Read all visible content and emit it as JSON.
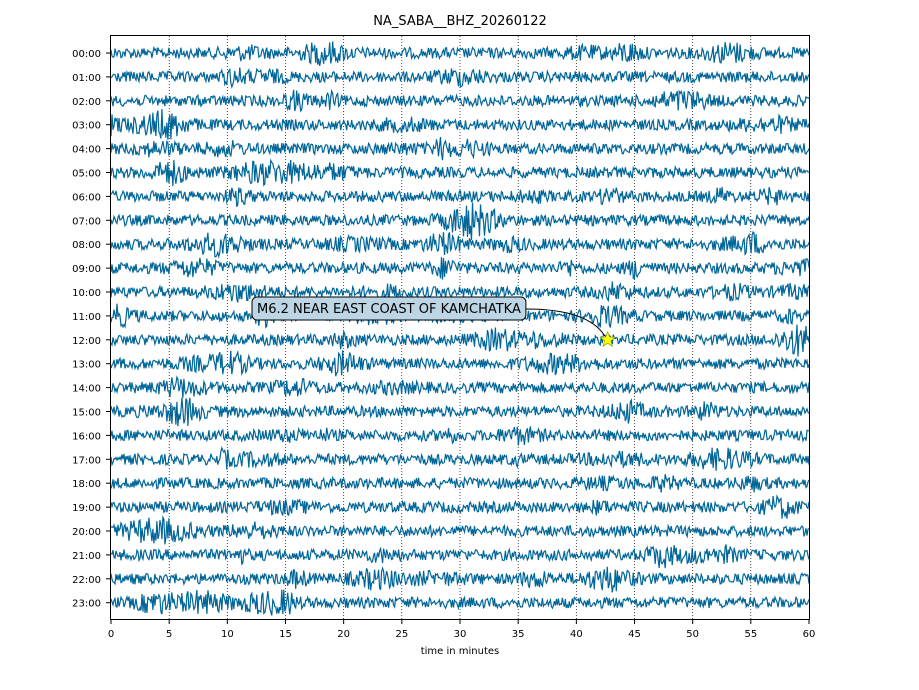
{
  "chart_data": {
    "type": "line",
    "subtype": "helicorder",
    "title": "NA_SABA__BHZ_20260122",
    "xlabel": "time in minutes",
    "ylabel": "",
    "xlim": [
      0,
      60
    ],
    "x_ticks": [
      0,
      5,
      10,
      15,
      20,
      25,
      30,
      35,
      40,
      45,
      50,
      55,
      60
    ],
    "x_grid": "dotted",
    "row_labels": [
      "00:00",
      "01:00",
      "02:00",
      "03:00",
      "04:00",
      "05:00",
      "06:00",
      "07:00",
      "08:00",
      "09:00",
      "10:00",
      "11:00",
      "12:00",
      "13:00",
      "14:00",
      "15:00",
      "16:00",
      "17:00",
      "18:00",
      "19:00",
      "20:00",
      "21:00",
      "22:00",
      "23:00"
    ],
    "trace_color": "#006699",
    "annotation": {
      "text": "M6.2 NEAR EAST COAST OF KAMCHATKA",
      "row": "12:00",
      "minute": 42.7,
      "marker": "star",
      "marker_color": "#ffff00"
    }
  }
}
